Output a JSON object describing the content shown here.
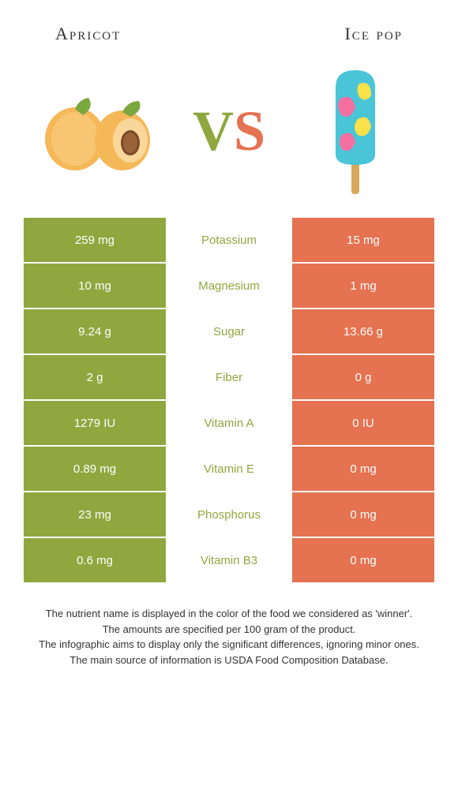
{
  "header": {
    "left": "Apricot",
    "right": "Ice pop"
  },
  "vs": {
    "v": "V",
    "s": "S"
  },
  "colors": {
    "green": "#8fa73e",
    "orange": "#e57250",
    "text": "#333333"
  },
  "rows": [
    {
      "left": "259 mg",
      "mid": "Potassium",
      "right": "15 mg",
      "winner": "green"
    },
    {
      "left": "10 mg",
      "mid": "Magnesium",
      "right": "1 mg",
      "winner": "green"
    },
    {
      "left": "9.24 g",
      "mid": "Sugar",
      "right": "13.66 g",
      "winner": "green"
    },
    {
      "left": "2 g",
      "mid": "Fiber",
      "right": "0 g",
      "winner": "green"
    },
    {
      "left": "1279 IU",
      "mid": "Vitamin A",
      "right": "0 IU",
      "winner": "green"
    },
    {
      "left": "0.89 mg",
      "mid": "Vitamin E",
      "right": "0 mg",
      "winner": "green"
    },
    {
      "left": "23 mg",
      "mid": "Phosphorus",
      "right": "0 mg",
      "winner": "green"
    },
    {
      "left": "0.6 mg",
      "mid": "Vitamin B3",
      "right": "0 mg",
      "winner": "green"
    }
  ],
  "footnote": {
    "line1": "The nutrient name is displayed in the color of the food we considered as 'winner'.",
    "line2": "The amounts are specified per 100 gram of the product.",
    "line3": "The infographic aims to display only the significant differences, ignoring minor ones.",
    "line4": "The main source of information is USDA Food Composition Database."
  }
}
